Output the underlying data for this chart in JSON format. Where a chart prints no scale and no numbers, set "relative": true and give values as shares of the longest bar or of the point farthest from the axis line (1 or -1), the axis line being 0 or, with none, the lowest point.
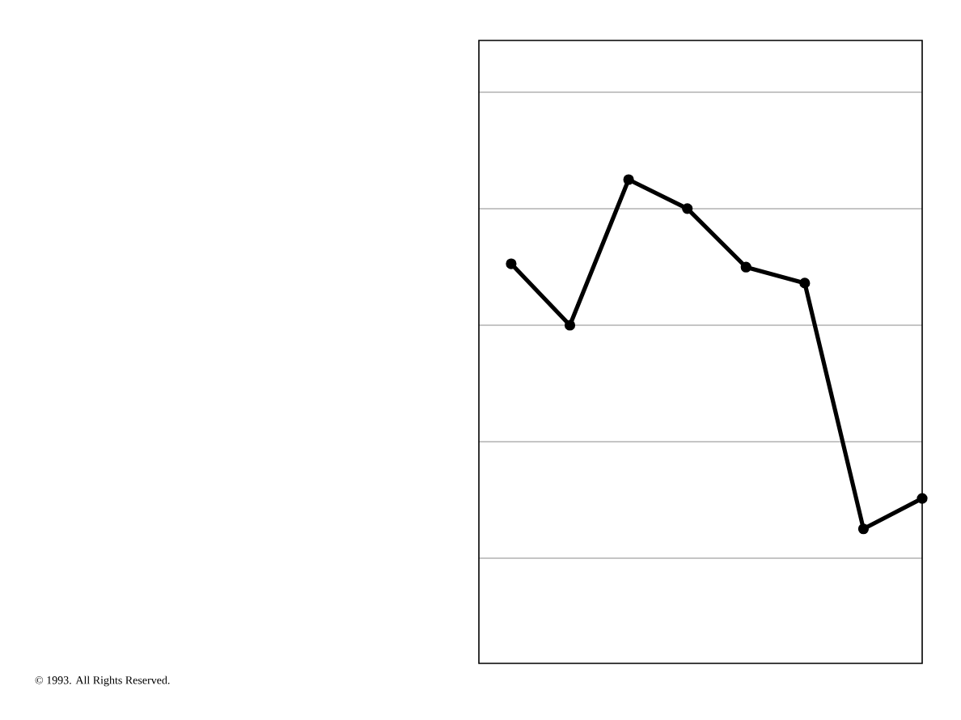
{
  "chart_data": {
    "type": "line",
    "relative": true,
    "grid": "y",
    "marker": "circle",
    "line_style": "solid",
    "categories": [
      null,
      null,
      null,
      null,
      null,
      null,
      null,
      null
    ],
    "series": [
      {
        "color": "#000000",
        "values": [
          0.826,
          0.699,
          1,
          0.94,
          0.819,
          0.786,
          0.278,
          0.341
        ]
      }
    ],
    "annotations": [
      "© 1993. All Rights Reserved."
    ]
  }
}
